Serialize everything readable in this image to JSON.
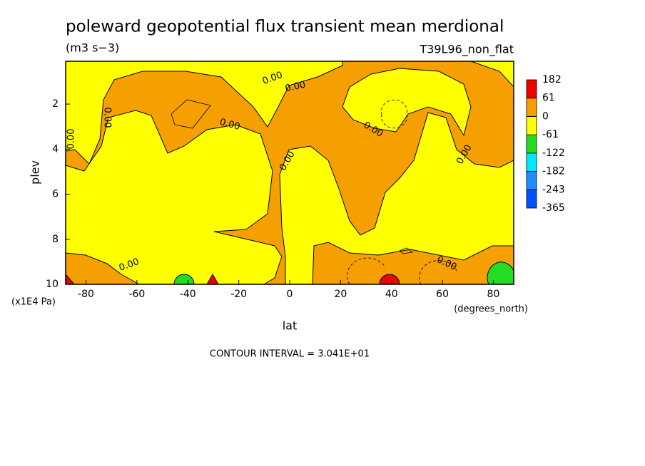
{
  "chart_data": {
    "type": "contour",
    "title": "poleward geopotential flux transient mean merdional",
    "subtitle": "(m3 s−3)",
    "tag": "T39L96_non_flat",
    "x_label": "lat",
    "y_label": "plev",
    "x_unit": "(degrees_north)",
    "y_unit": "(x1E4 Pa)",
    "footnote": "CONTOUR INTERVAL = 3.041E+01",
    "xlim": [
      -88,
      88
    ],
    "xticks": [
      -80,
      -60,
      -40,
      -20,
      0,
      20,
      40,
      60,
      80
    ],
    "ylim": [
      10,
      0.1
    ],
    "yticks": [
      2,
      4,
      6,
      8,
      10
    ],
    "levels": [
      -365,
      -243,
      -182,
      -122,
      -61,
      0,
      61,
      182
    ],
    "colors": [
      "#0050ff",
      "#1e8cff",
      "#00e8ff",
      "#22dd22",
      "#ffff00",
      "#f5a000",
      "#ee0000"
    ],
    "contour_labels": [
      "0.00",
      "0.00",
      "0.00",
      "0.00",
      "0.00",
      "0.00",
      "0.00",
      "0.00",
      "0.00",
      "0.00"
    ]
  }
}
